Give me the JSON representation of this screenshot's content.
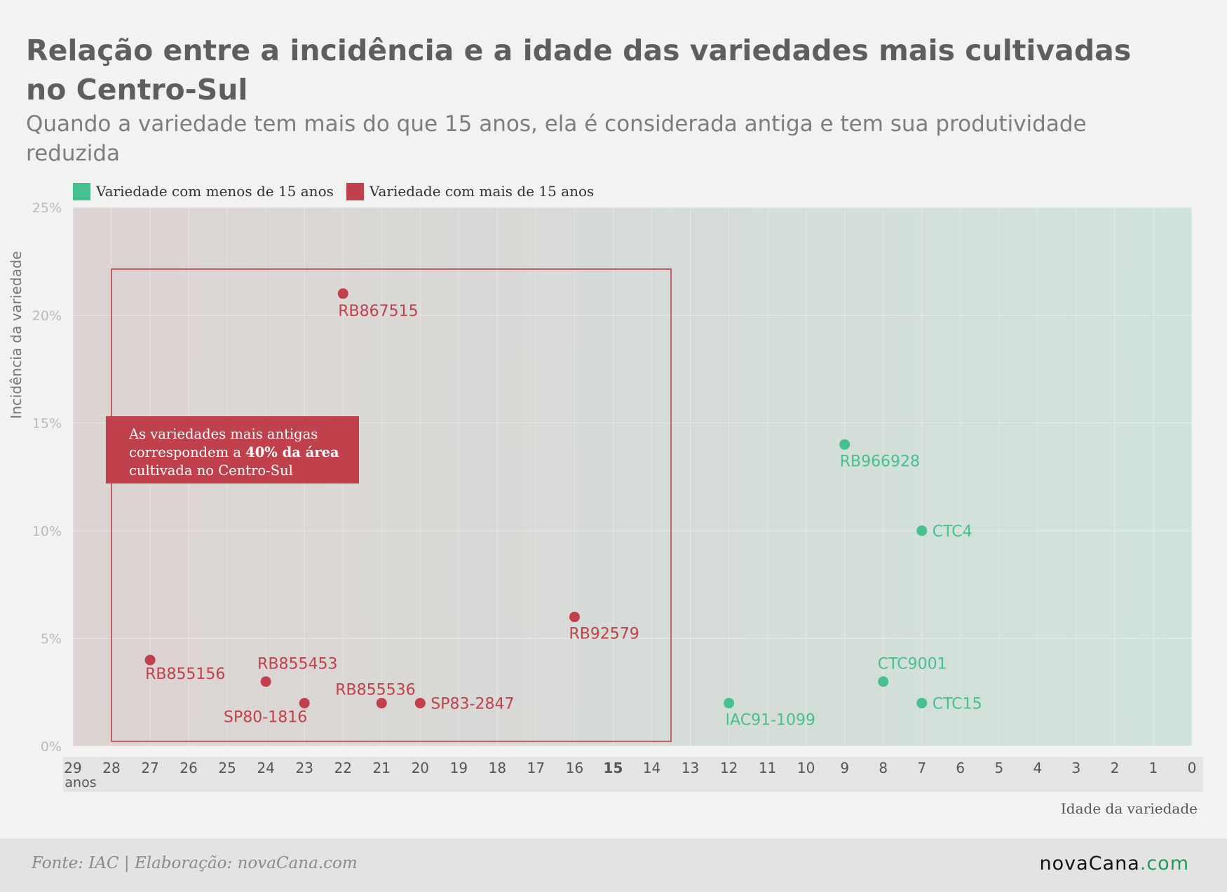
{
  "title": "Relação entre a incidência e a idade das variedades mais cultivadas no Centro-Sul",
  "subtitle": "Quando a variedade tem mais do que 15 anos, ela é considerada antiga e tem sua produtividade reduzida",
  "legend": [
    {
      "label": "Variedade com menos de 15 anos",
      "color": "#45c08e"
    },
    {
      "label": "Variedade com mais de 15 anos",
      "color": "#c0404c"
    }
  ],
  "annotation": {
    "before": "As variedades mais antigas correspondem a ",
    "bold": "40% da área",
    "after": " cultivada no Centro-Sul"
  },
  "source": "Fonte: IAC | Elaboração: novaCana.com",
  "logo": {
    "part1": "nova",
    "part2": "Cana",
    "part3": ".com"
  },
  "chart_data": {
    "type": "scatter",
    "xlabel": "Idade da variedade",
    "ylabel": "Incidência da variedade",
    "x_reversed": true,
    "xlim": [
      29,
      0
    ],
    "ylim": [
      0,
      25
    ],
    "x_ticks": [
      29,
      28,
      27,
      26,
      25,
      24,
      23,
      22,
      21,
      20,
      19,
      18,
      17,
      16,
      15,
      14,
      13,
      12,
      11,
      10,
      9,
      8,
      7,
      6,
      5,
      4,
      3,
      2,
      1,
      0
    ],
    "x_tick_bold": 15,
    "x_tick_suffix": "anos",
    "y_ticks": [
      0,
      5,
      10,
      15,
      20,
      25
    ],
    "y_tick_labels": [
      "0%",
      "5%",
      "10%",
      "15%",
      "20%",
      "25%"
    ],
    "grid": true,
    "highlight_box_x": [
      28,
      13.5
    ],
    "series": [
      {
        "name": "Variedade com mais de 15 anos",
        "color": "#c0404c",
        "points": [
          {
            "label": "RB867515",
            "x": 22,
            "y": 21
          },
          {
            "label": "RB855156",
            "x": 27,
            "y": 4
          },
          {
            "label": "RB855453",
            "x": 24,
            "y": 3
          },
          {
            "label": "SP80-1816",
            "x": 23,
            "y": 2
          },
          {
            "label": "RB855536",
            "x": 21,
            "y": 2
          },
          {
            "label": "SP83-2847",
            "x": 20,
            "y": 2
          },
          {
            "label": "RB92579",
            "x": 16,
            "y": 6
          }
        ]
      },
      {
        "name": "Variedade com menos de 15 anos",
        "color": "#45c08e",
        "points": [
          {
            "label": "RB966928",
            "x": 9,
            "y": 14
          },
          {
            "label": "CTC4",
            "x": 7,
            "y": 10
          },
          {
            "label": "CTC9001",
            "x": 8,
            "y": 3
          },
          {
            "label": "CTC15",
            "x": 7,
            "y": 2
          },
          {
            "label": "IAC91-1099",
            "x": 12,
            "y": 2
          }
        ]
      }
    ]
  }
}
